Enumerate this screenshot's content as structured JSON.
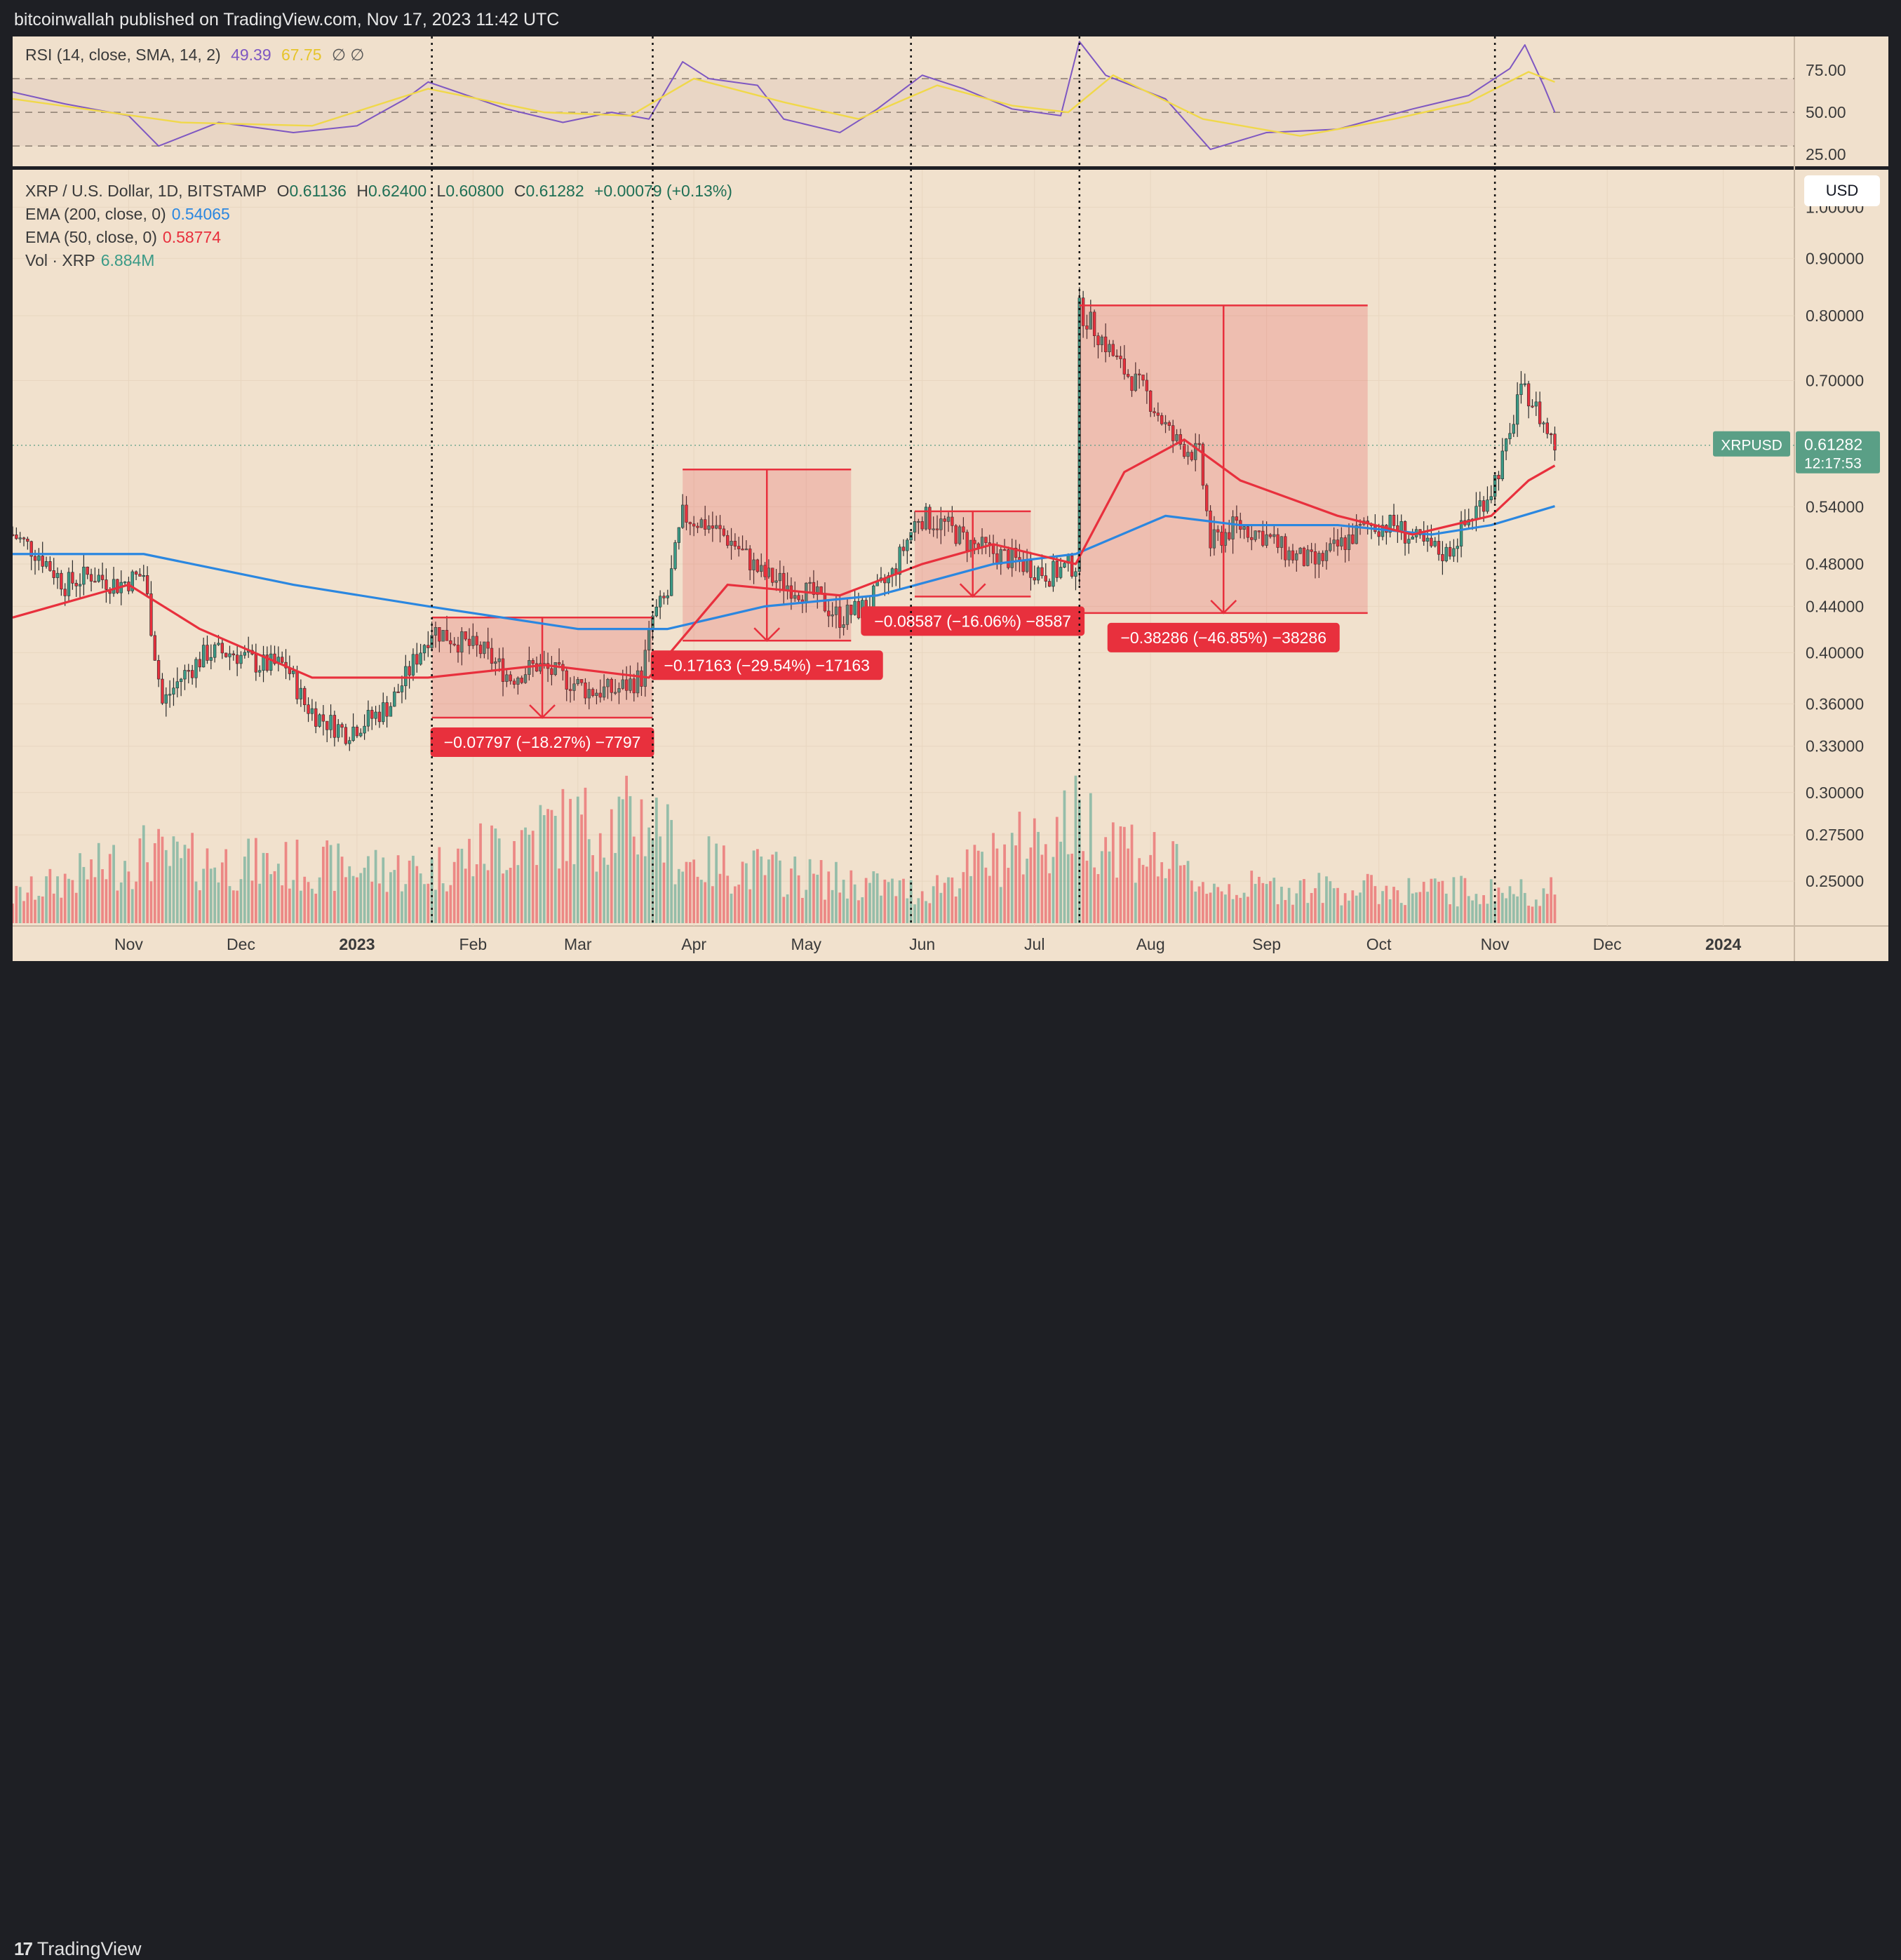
{
  "publisher": "bitcoinwallah published on TradingView.com, Nov 17, 2023 11:42 UTC",
  "brand": "TradingView",
  "colors": {
    "bg": "#f1e1cd",
    "rsi_bg": "#f0e0cc",
    "rsi_band": "#e4cdc0",
    "ema200": "#2b87e0",
    "ema50": "#e8303d",
    "rsi_line": "#7e57c2",
    "rsi_sma": "#f0d84a",
    "up": "#3a9a86",
    "down": "#e8303d",
    "box": "#e8303d",
    "price_tag": "#5a9f86"
  },
  "rsi_legend": {
    "name": "RSI (14, close, SMA, 14, 2)",
    "value": "49.39",
    "sma_value": "67.75",
    "icons": "∅ ∅"
  },
  "price_legend": {
    "symbol": "XRP / U.S. Dollar, 1D, BITSTAMP",
    "open_label": "O",
    "open": "0.61136",
    "high_label": "H",
    "high": "0.62400",
    "low_label": "L",
    "low": "0.60800",
    "close_label": "C",
    "close": "0.61282",
    "change": "+0.00079 (+0.13%)",
    "ema200_label": "EMA (200, close, 0)",
    "ema200_value": "0.54065",
    "ema50_label": "EMA (50, close, 0)",
    "ema50_value": "0.58774",
    "vol_label": "Vol · XRP",
    "vol_value": "6.884M"
  },
  "currency_button": "USD",
  "price_tag": {
    "symbol": "XRPUSD",
    "price": "0.61282",
    "countdown": "12:17:53"
  },
  "chart_data": [
    {
      "type": "line",
      "title": "RSI (14, close, SMA, 14, 2)",
      "y_ticks": [
        "75.00",
        "50.00",
        "25.00"
      ],
      "y_range": [
        18,
        95
      ],
      "bands": [
        70,
        50,
        30
      ],
      "series": [
        {
          "name": "RSI",
          "x": [
            "2022-10-01",
            "2022-10-15",
            "2022-11-01",
            "2022-11-09",
            "2022-11-25",
            "2022-12-15",
            "2023-01-01",
            "2023-01-14",
            "2023-01-20",
            "2023-02-10",
            "2023-02-25",
            "2023-03-10",
            "2023-03-20",
            "2023-03-29",
            "2023-04-05",
            "2023-04-18",
            "2023-04-25",
            "2023-05-10",
            "2023-05-20",
            "2023-06-01",
            "2023-06-12",
            "2023-06-25",
            "2023-07-08",
            "2023-07-13",
            "2023-07-20",
            "2023-08-05",
            "2023-08-17",
            "2023-09-01",
            "2023-09-20",
            "2023-10-10",
            "2023-10-25",
            "2023-11-05",
            "2023-11-09",
            "2023-11-14",
            "2023-11-17"
          ],
          "values": [
            62,
            55,
            48,
            30,
            44,
            38,
            42,
            58,
            68,
            52,
            44,
            50,
            46,
            80,
            70,
            66,
            46,
            38,
            52,
            72,
            64,
            52,
            48,
            92,
            72,
            58,
            28,
            38,
            40,
            52,
            60,
            76,
            90,
            66,
            50
          ]
        },
        {
          "name": "RSI SMA",
          "x": [
            "2022-10-01",
            "2022-11-15",
            "2022-12-20",
            "2023-01-20",
            "2023-02-20",
            "2023-03-15",
            "2023-04-01",
            "2023-04-25",
            "2023-05-15",
            "2023-06-05",
            "2023-06-25",
            "2023-07-10",
            "2023-07-22",
            "2023-08-15",
            "2023-09-10",
            "2023-10-05",
            "2023-10-25",
            "2023-11-10",
            "2023-11-17"
          ],
          "values": [
            58,
            44,
            42,
            64,
            50,
            48,
            70,
            56,
            46,
            66,
            54,
            50,
            72,
            46,
            36,
            46,
            56,
            74,
            68
          ]
        }
      ]
    },
    {
      "type": "candlestick",
      "title": "XRP / U.S. Dollar, 1D, BITSTAMP",
      "x_ticks": [
        "Nov",
        "Dec",
        "2023",
        "Feb",
        "Mar",
        "Apr",
        "May",
        "Jun",
        "Jul",
        "Aug",
        "Sep",
        "Oct",
        "Nov",
        "Dec",
        "2024"
      ],
      "y_ticks": [
        "1.00000",
        "0.90000",
        "0.80000",
        "0.70000",
        "0.54000",
        "0.48000",
        "0.44000",
        "0.40000",
        "0.36000",
        "0.33000",
        "0.30000",
        "0.27500",
        "0.25000"
      ],
      "y_scale": "log",
      "y_range": [
        0.228,
        1.08
      ],
      "x_range": [
        "2022-10-01",
        "2024-01-20"
      ],
      "series": [
        {
          "name": "XRPUSD close",
          "x": [
            "2022-10-01",
            "2022-10-08",
            "2022-10-15",
            "2022-10-22",
            "2022-10-29",
            "2022-11-05",
            "2022-11-08",
            "2022-11-10",
            "2022-11-15",
            "2022-11-22",
            "2022-11-29",
            "2022-12-06",
            "2022-12-13",
            "2022-12-18",
            "2022-12-22",
            "2022-12-29",
            "2023-01-05",
            "2023-01-10",
            "2023-01-14",
            "2023-01-21",
            "2023-01-28",
            "2023-02-04",
            "2023-02-11",
            "2023-02-18",
            "2023-02-25",
            "2023-03-04",
            "2023-03-11",
            "2023-03-18",
            "2023-03-21",
            "2023-03-25",
            "2023-03-29",
            "2023-04-05",
            "2023-04-12",
            "2023-04-19",
            "2023-04-26",
            "2023-05-03",
            "2023-05-10",
            "2023-05-17",
            "2023-05-24",
            "2023-05-31",
            "2023-06-07",
            "2023-06-14",
            "2023-06-21",
            "2023-06-28",
            "2023-07-05",
            "2023-07-12",
            "2023-07-13",
            "2023-07-17",
            "2023-07-24",
            "2023-07-31",
            "2023-08-07",
            "2023-08-14",
            "2023-08-17",
            "2023-08-24",
            "2023-08-31",
            "2023-09-07",
            "2023-09-14",
            "2023-09-21",
            "2023-09-28",
            "2023-10-05",
            "2023-10-12",
            "2023-10-19",
            "2023-10-24",
            "2023-10-31",
            "2023-11-05",
            "2023-11-07",
            "2023-11-10",
            "2023-11-14",
            "2023-11-17"
          ],
          "values": [
            0.51,
            0.49,
            0.46,
            0.47,
            0.46,
            0.47,
            0.4,
            0.36,
            0.38,
            0.4,
            0.4,
            0.39,
            0.39,
            0.36,
            0.35,
            0.34,
            0.35,
            0.36,
            0.38,
            0.42,
            0.41,
            0.4,
            0.38,
            0.39,
            0.38,
            0.37,
            0.37,
            0.38,
            0.43,
            0.45,
            0.53,
            0.52,
            0.5,
            0.47,
            0.46,
            0.45,
            0.43,
            0.44,
            0.47,
            0.53,
            0.52,
            0.5,
            0.49,
            0.48,
            0.47,
            0.48,
            0.81,
            0.78,
            0.72,
            0.68,
            0.62,
            0.6,
            0.5,
            0.52,
            0.51,
            0.49,
            0.48,
            0.5,
            0.52,
            0.52,
            0.5,
            0.49,
            0.52,
            0.56,
            0.62,
            0.68,
            0.68,
            0.64,
            0.61282
          ]
        },
        {
          "name": "EMA (200, close, 0)",
          "x": [
            "2022-10-01",
            "2022-11-05",
            "2022-12-15",
            "2023-01-20",
            "2023-03-01",
            "2023-03-25",
            "2023-04-20",
            "2023-05-20",
            "2023-06-20",
            "2023-07-12",
            "2023-08-05",
            "2023-08-25",
            "2023-09-20",
            "2023-10-15",
            "2023-10-31",
            "2023-11-17"
          ],
          "values": [
            0.49,
            0.49,
            0.46,
            0.44,
            0.42,
            0.42,
            0.44,
            0.45,
            0.48,
            0.49,
            0.53,
            0.52,
            0.52,
            0.51,
            0.52,
            0.54065
          ]
        },
        {
          "name": "EMA (50, close, 0)",
          "x": [
            "2022-10-01",
            "2022-11-01",
            "2022-11-20",
            "2022-12-20",
            "2023-01-20",
            "2023-02-20",
            "2023-03-20",
            "2023-04-10",
            "2023-05-10",
            "2023-06-01",
            "2023-06-20",
            "2023-07-12",
            "2023-07-25",
            "2023-08-10",
            "2023-08-25",
            "2023-09-20",
            "2023-10-10",
            "2023-10-31",
            "2023-11-10",
            "2023-11-17"
          ],
          "values": [
            0.43,
            0.46,
            0.42,
            0.38,
            0.38,
            0.39,
            0.38,
            0.46,
            0.45,
            0.48,
            0.5,
            0.48,
            0.58,
            0.62,
            0.57,
            0.53,
            0.51,
            0.53,
            0.57,
            0.58774
          ]
        }
      ]
    }
  ],
  "measurements": [
    {
      "label": "−0.07797 (−18.27%) −7797",
      "from": "2023-01-21",
      "to": "2023-03-21",
      "top": 0.43,
      "bottom": 0.35
    },
    {
      "label": "−0.17163 (−29.54%) −17163",
      "from": "2023-03-29",
      "to": "2023-05-13",
      "top": 0.583,
      "bottom": 0.41
    },
    {
      "label": "−0.08587 (−16.06%) −8587",
      "from": "2023-05-30",
      "to": "2023-06-30",
      "top": 0.535,
      "bottom": 0.449
    },
    {
      "label": "−0.38286 (−46.85%) −38286",
      "from": "2023-07-13",
      "to": "2023-09-28",
      "top": 0.817,
      "bottom": 0.434
    }
  ],
  "event_markers": [
    "2023-01-21",
    "2023-03-21",
    "2023-05-29",
    "2023-07-13",
    "2023-11-01"
  ],
  "volume": {
    "x": [
      "2022-10-01",
      "2022-11-08",
      "2022-11-10",
      "2023-01-20",
      "2023-02-20",
      "2023-03-21",
      "2023-03-29",
      "2023-06-01",
      "2023-07-13",
      "2023-08-17",
      "2023-11-08"
    ],
    "values": [
      0.25,
      0.7,
      0.6,
      0.5,
      0.9,
      1.0,
      0.6,
      0.3,
      1.0,
      0.35,
      0.3
    ]
  }
}
